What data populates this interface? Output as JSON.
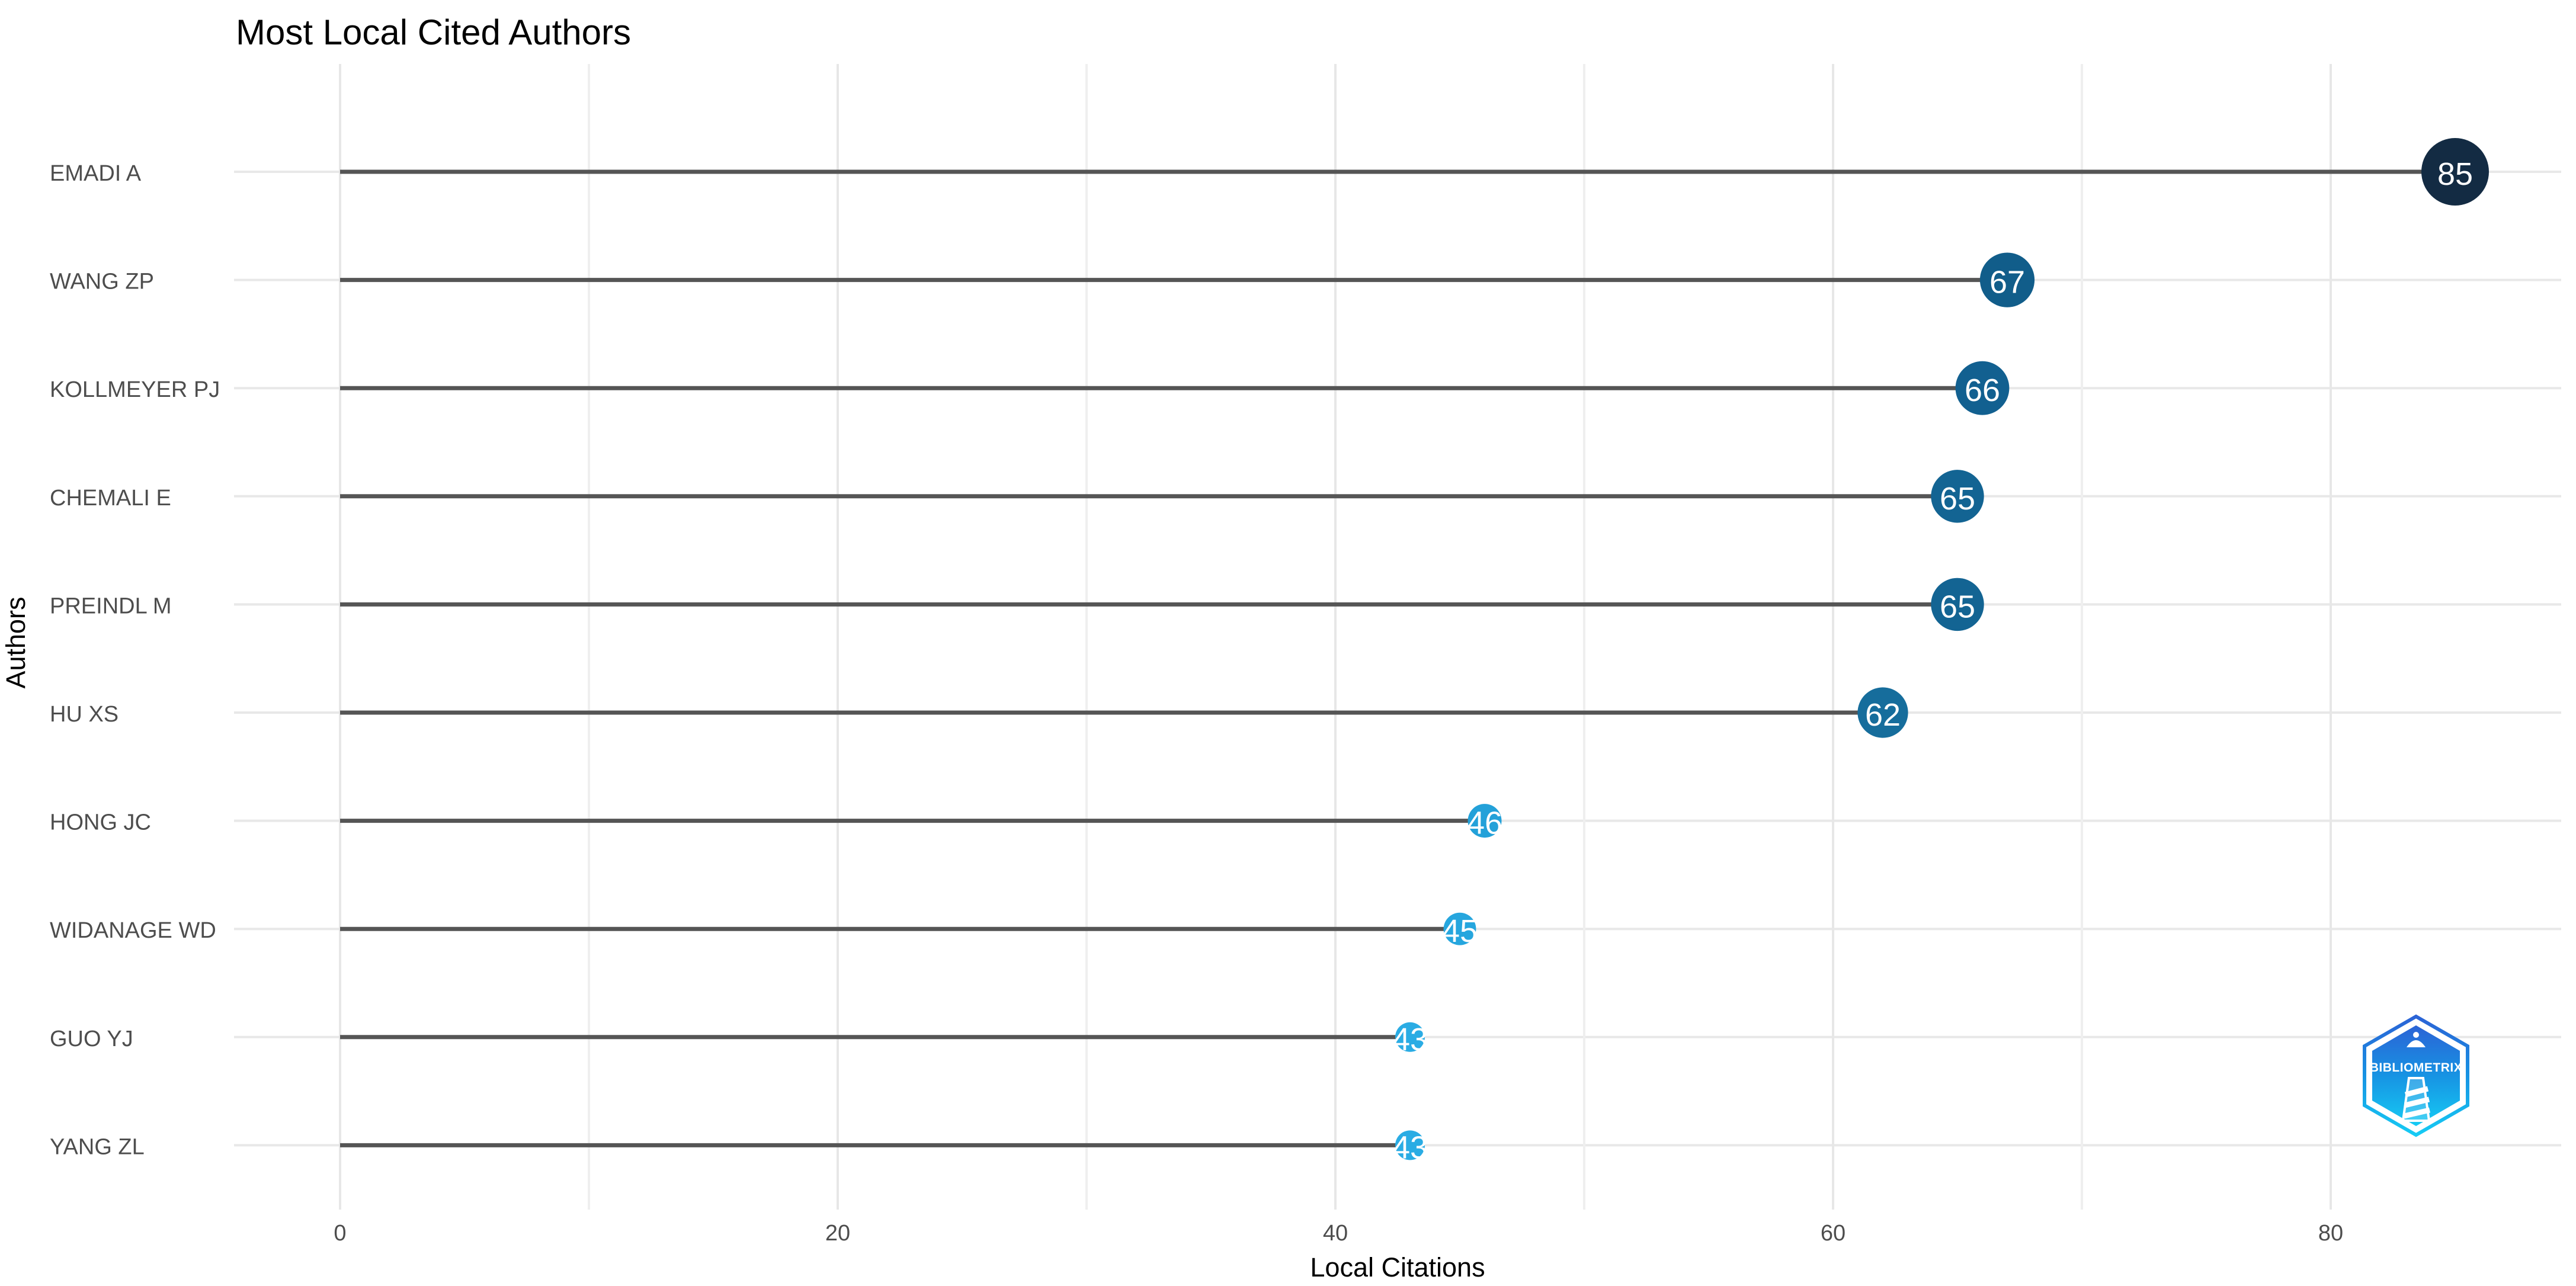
{
  "chart_data": {
    "type": "lollipop",
    "title": "Most Local Cited Authors",
    "xlabel": "Local Citations",
    "ylabel": "Authors",
    "x_ticks": [
      0,
      20,
      40,
      60,
      80
    ],
    "x_minor_ticks": [
      10,
      30,
      50,
      70
    ],
    "xlim": [
      0,
      85
    ],
    "grid": true,
    "legend": "none",
    "categories": [
      "EMADI A",
      "WANG ZP",
      "KOLLMEYER PJ",
      "CHEMALI E",
      "PREINDL M",
      "HU XS",
      "HONG JC",
      "WIDANAGE WD",
      "GUO YJ",
      "YANG ZL"
    ],
    "values": [
      85,
      67,
      66,
      65,
      65,
      62,
      46,
      45,
      43,
      43
    ],
    "points": [
      {
        "author": "EMADI A",
        "value": 85,
        "color": "#132B43"
      },
      {
        "author": "WANG ZP",
        "value": 67,
        "color": "#115D8A"
      },
      {
        "author": "KOLLMEYER PJ",
        "value": 66,
        "color": "#126090"
      },
      {
        "author": "CHEMALI E",
        "value": 65,
        "color": "#136493"
      },
      {
        "author": "PREINDL M",
        "value": 65,
        "color": "#136493"
      },
      {
        "author": "HU XS",
        "value": 62,
        "color": "#166D9C"
      },
      {
        "author": "HONG JC",
        "value": 46,
        "color": "#23A1D9"
      },
      {
        "author": "WIDANAGE WD",
        "value": 45,
        "color": "#26A6DE"
      },
      {
        "author": "GUO YJ",
        "value": 43,
        "color": "#2AACE4"
      },
      {
        "author": "YANG ZL",
        "value": 43,
        "color": "#2AACE4"
      }
    ]
  },
  "colors": {
    "stem": "#555555",
    "row_line": "#E8E8E8",
    "grid_major": "#E7E7E7",
    "grid_minor": "#EFEFEF",
    "axis_text": "#4d4d4d",
    "title_text": "#000000",
    "dot_label": "#FFFFFF"
  },
  "logo": {
    "text": "BIBLIOMETRIX",
    "gradient_top": "#2B63D6",
    "gradient_mid": "#1793E3",
    "gradient_bottom": "#16CBF4"
  }
}
